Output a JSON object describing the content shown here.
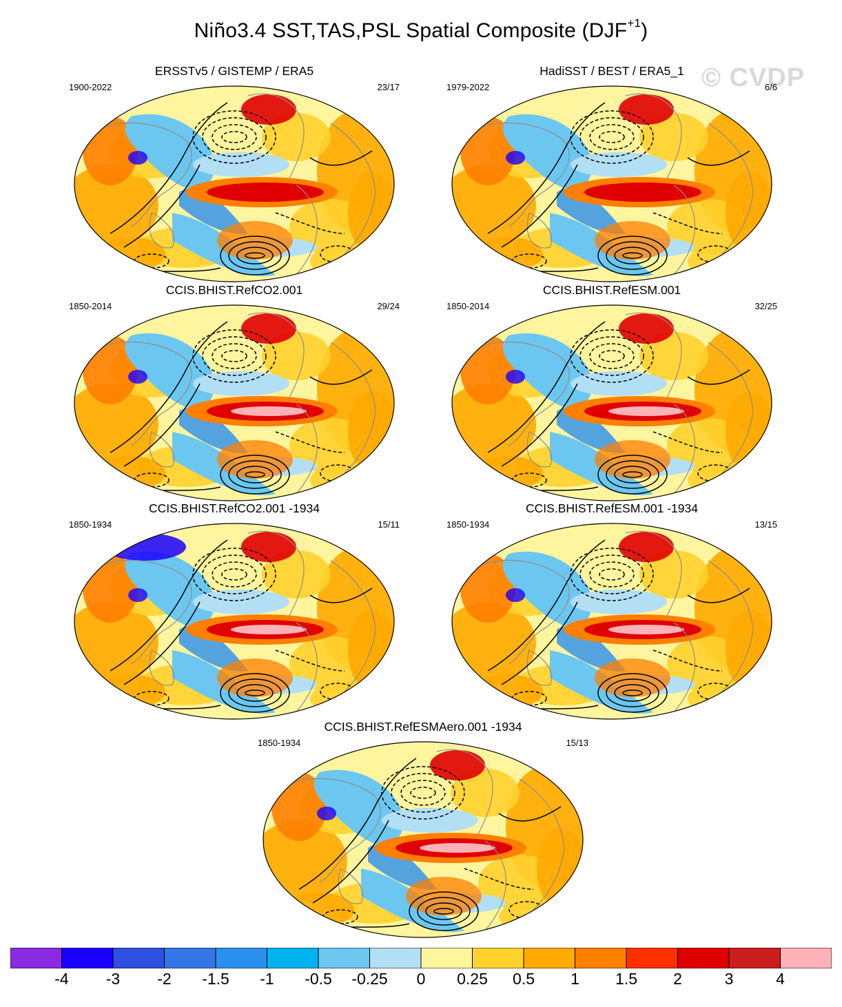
{
  "title": "Niño3.4 SST,TAS,PSL Spatial Composite (DJF",
  "title_superscript": "+1",
  "title_close": ")",
  "watermark": "© CVDP",
  "panels": [
    {
      "title": "ERSSTv5 / GISTEMP / ERA5",
      "period": "1900-2022",
      "count": "23/17"
    },
    {
      "title": "HadiSST / BEST / ERA5_1",
      "period": "1979-2022",
      "count": "6/6"
    },
    {
      "title": "CCIS.BHIST.RefCO2.001",
      "period": "1850-2014",
      "count": "29/24"
    },
    {
      "title": "CCIS.BHIST.RefESM.001",
      "period": "1850-2014",
      "count": "32/25"
    },
    {
      "title": "CCIS.BHIST.RefCO2.001 -1934",
      "period": "1850-1934",
      "count": "15/11"
    },
    {
      "title": "CCIS.BHIST.RefESM.001 -1934",
      "period": "1850-1934",
      "count": "13/15"
    },
    {
      "title": "CCIS.BHIST.RefESMAero.001 -1934",
      "period": "1850-1934",
      "count": "15/13"
    }
  ],
  "colorbar": {
    "colors": [
      "#8a2be2",
      "#1a00ff",
      "#2e4fe0",
      "#3476e6",
      "#2b8fee",
      "#00b2f0",
      "#6cc7f0",
      "#b3dff4",
      "#fff59e",
      "#ffd22e",
      "#ffaa00",
      "#ff7f00",
      "#ff3000",
      "#e00000",
      "#cc1d1d",
      "#ffb3b8"
    ],
    "labels": [
      "-4",
      "-3",
      "-2",
      "-1.5",
      "-1",
      "-0.5",
      "-0.25",
      "0",
      "0.25",
      "0.5",
      "1",
      "1.5",
      "2",
      "3",
      "4"
    ]
  },
  "map_palette": {
    "ocean_base": "#fff59e",
    "warm_strong": "#e00000",
    "warm_core": "#ffb3b8",
    "warm_med": "#ff7f00",
    "warm_light": "#ffaa00",
    "warm_pale": "#ffd22e",
    "cool_light": "#6cc7f0",
    "cool_pale": "#b3dff4",
    "cool_med": "#2b8fee",
    "cool_strong": "#1a00ff",
    "coast": "#8c8c8c",
    "contour": "#000000"
  }
}
